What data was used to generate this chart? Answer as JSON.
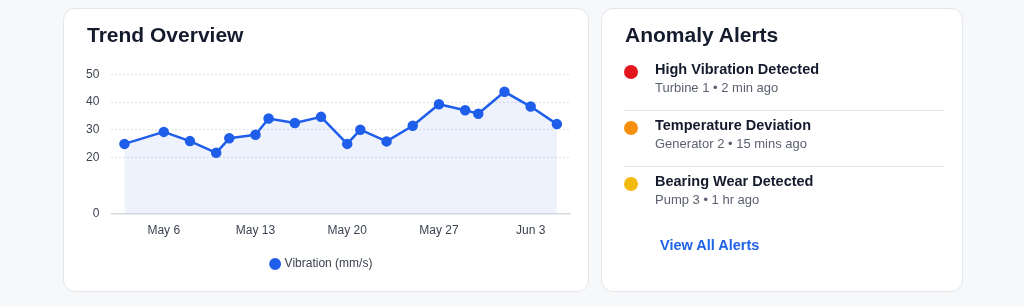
{
  "chart_data": [
    {
      "type": "area",
      "title": "Trend Overview",
      "x": [
        "--05-03",
        "--05-06",
        "--05-08",
        "--05-10",
        "--05-11",
        "--05-13",
        "--05-14",
        "--05-16",
        "--05-18",
        "--05-20",
        "--05-21",
        "--05-23",
        "--05-25",
        "--05-27",
        "--05-29",
        "--05-30",
        "--06-01",
        "--06-03",
        "--06-05"
      ],
      "series": [
        {
          "name": "Vibration (mm/s)",
          "color": "#1f5eea",
          "values": [
            25,
            29.3,
            26,
            21.8,
            27,
            28.3,
            34.1,
            32.5,
            34.7,
            25,
            30.1,
            25.9,
            31.5,
            39.2,
            37.1,
            35.8,
            43.7,
            38.4,
            32.1
          ]
        }
      ],
      "xlim": [
        "--05-02",
        "--06-06"
      ],
      "xticks": [
        {
          "value": "--05-06",
          "label": "May 6"
        },
        {
          "value": "--05-13",
          "label": "May 13"
        },
        {
          "value": "--05-20",
          "label": "May 20"
        },
        {
          "value": "--05-27",
          "label": "May 27"
        },
        {
          "value": "--06-03",
          "label": "Jun 3"
        }
      ],
      "ylim": [
        0,
        50
      ],
      "yticks": [
        0,
        20,
        30,
        40,
        50
      ],
      "grid": "y",
      "legend": "bottom",
      "marker": "circle",
      "line_style": "solid"
    },
    {
      "type": "other",
      "title": "Anomaly Alerts",
      "annotations": [
        "High Vibration Detected",
        "Turbine 1 • 2 min ago",
        "Temperature Deviation",
        "Generator 2 • 15 mins ago",
        "Bearing Wear Detected",
        "Pump 3 • 1 hr ago",
        "View All Alerts"
      ],
      "colors": [
        "#e3161e",
        "#f7900f",
        "#f2b90f"
      ]
    }
  ]
}
